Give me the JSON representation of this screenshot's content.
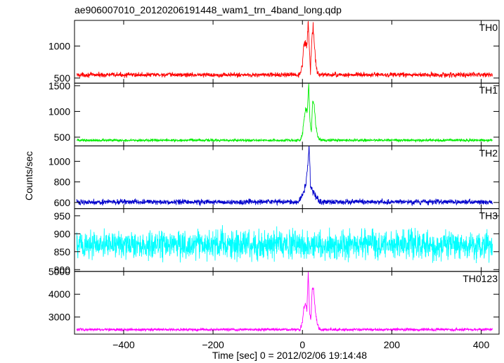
{
  "title": "ae906007010_20120206191448_wam1_trn_4band_long.qdp",
  "ylabel": "Counts/sec",
  "xlabel": "Time [sec] 0 = 2012/02/06 19:14:48",
  "chart_data": {
    "type": "line",
    "title": "ae906007010_20120206191448_wam1_trn_4band_long.qdp",
    "xlabel": "Time [sec] 0 = 2012/02/06 19:14:48",
    "ylabel": "Counts/sec",
    "xlim": [
      -510,
      440
    ],
    "x_ticks": [
      -400,
      -200,
      0,
      200,
      400
    ],
    "x_tick_labels": [
      "−400",
      "−200",
      "0",
      "200",
      "400"
    ],
    "grid": false,
    "panels": [
      {
        "name": "TH0",
        "color": "#ff0000",
        "ylim": [
          420,
          1400
        ],
        "y_ticks": [
          500,
          1000
        ],
        "y_tick_labels": [
          "500",
          "1000"
        ],
        "baseline": 550,
        "noise": 35,
        "burst": [
          [
            -5,
            560
          ],
          [
            0,
            700
          ],
          [
            2,
            950
          ],
          [
            5,
            1050
          ],
          [
            10,
            1000
          ],
          [
            13,
            1400
          ],
          [
            16,
            880
          ],
          [
            18,
            600
          ],
          [
            21,
            1100
          ],
          [
            24,
            1300
          ],
          [
            28,
            900
          ],
          [
            32,
            620
          ],
          [
            38,
            560
          ]
        ]
      },
      {
        "name": "TH1",
        "color": "#00ee00",
        "ylim": [
          330,
          1550
        ],
        "y_ticks": [
          500,
          1000,
          1500
        ],
        "y_tick_labels": [
          "500",
          "1000",
          "1500"
        ],
        "baseline": 440,
        "noise": 25,
        "burst": [
          [
            -5,
            450
          ],
          [
            0,
            560
          ],
          [
            3,
            800
          ],
          [
            7,
            1050
          ],
          [
            11,
            1000
          ],
          [
            14,
            1550
          ],
          [
            17,
            800
          ],
          [
            20,
            600
          ],
          [
            23,
            1200
          ],
          [
            26,
            1150
          ],
          [
            30,
            700
          ],
          [
            35,
            500
          ],
          [
            40,
            450
          ]
        ]
      },
      {
        "name": "TH2",
        "color": "#0000cc",
        "ylim": [
          540,
          1150
        ],
        "y_ticks": [
          600,
          800,
          1000
        ],
        "y_tick_labels": [
          "600",
          "800",
          "1000"
        ],
        "baseline": 605,
        "noise": 25,
        "burst": [
          [
            -8,
            620
          ],
          [
            0,
            680
          ],
          [
            4,
            720
          ],
          [
            8,
            800
          ],
          [
            12,
            950
          ],
          [
            15,
            1150
          ],
          [
            18,
            780
          ],
          [
            22,
            700
          ],
          [
            26,
            680
          ],
          [
            32,
            640
          ],
          [
            40,
            610
          ]
        ]
      },
      {
        "name": "TH3",
        "color": "#00ffff",
        "ylim": [
          795,
          970
        ],
        "y_ticks": [
          800,
          850,
          900,
          950
        ],
        "y_tick_labels": [
          "800",
          "850",
          "900",
          "950"
        ],
        "baseline": 870,
        "noise": 40,
        "burst": []
      },
      {
        "name": "TH0123",
        "color": "#ff00ff",
        "ylim": [
          2250,
          5000
        ],
        "y_ticks": [
          3000,
          4000,
          5000
        ],
        "y_tick_labels": [
          "3000",
          "4000",
          "5000"
        ],
        "baseline": 2450,
        "noise": 60,
        "burst": [
          [
            -5,
            2450
          ],
          [
            0,
            2800
          ],
          [
            3,
            3400
          ],
          [
            7,
            3600
          ],
          [
            10,
            3300
          ],
          [
            13,
            5000
          ],
          [
            16,
            3200
          ],
          [
            19,
            2900
          ],
          [
            22,
            4300
          ],
          [
            25,
            4200
          ],
          [
            29,
            3200
          ],
          [
            34,
            2600
          ],
          [
            40,
            2450
          ]
        ]
      }
    ]
  }
}
